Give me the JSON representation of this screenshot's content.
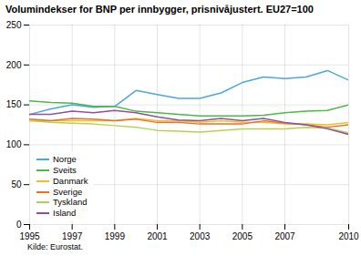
{
  "chart_data": {
    "type": "line",
    "title": "Volumindekser for BNP per innbygger, prisnivåjustert. EU27=100",
    "annotations": [
      "Kilde: Eurostat."
    ],
    "x": [
      1995,
      1996,
      1997,
      1998,
      1999,
      2000,
      2001,
      2002,
      2003,
      2004,
      2005,
      2006,
      2007,
      2008,
      2009,
      2010
    ],
    "series": [
      {
        "name": "Norge",
        "color": "#4da6e0",
        "values": [
          138,
          145,
          150,
          147,
          148,
          168,
          163,
          158,
          158,
          165,
          178,
          185,
          183,
          185,
          193,
          181
        ]
      },
      {
        "name": "Sveits",
        "color": "#4db848",
        "values": [
          155,
          153,
          152,
          148,
          148,
          142,
          140,
          138,
          136,
          136,
          136,
          137,
          140,
          142,
          143,
          150
        ]
      },
      {
        "name": "Danmark",
        "color": "#f0c020",
        "values": [
          130,
          130,
          130,
          130,
          130,
          133,
          130,
          130,
          128,
          130,
          128,
          128,
          126,
          126,
          125,
          128
        ]
      },
      {
        "name": "Sverige",
        "color": "#e87030",
        "values": [
          132,
          130,
          133,
          132,
          130,
          132,
          128,
          128,
          126,
          126,
          126,
          130,
          127,
          125,
          122,
          125
        ]
      },
      {
        "name": "Tyskland",
        "color": "#b8d050",
        "values": [
          130,
          128,
          127,
          126,
          124,
          122,
          118,
          117,
          116,
          118,
          120,
          120,
          120,
          122,
          121,
          115
        ]
      },
      {
        "name": "Island",
        "color": "#9050a0",
        "values": [
          138,
          138,
          142,
          140,
          143,
          140,
          135,
          131,
          130,
          133,
          130,
          133,
          128,
          125,
          120,
          113
        ]
      }
    ],
    "xlim": [
      1995,
      2010
    ],
    "xticks": [
      1995,
      1997,
      1999,
      2001,
      2003,
      2005,
      2007,
      2010
    ],
    "ylim": [
      0,
      250
    ],
    "yticks": [
      0,
      50,
      100,
      150,
      200,
      250
    ],
    "grid": true,
    "legend": "lower left"
  }
}
